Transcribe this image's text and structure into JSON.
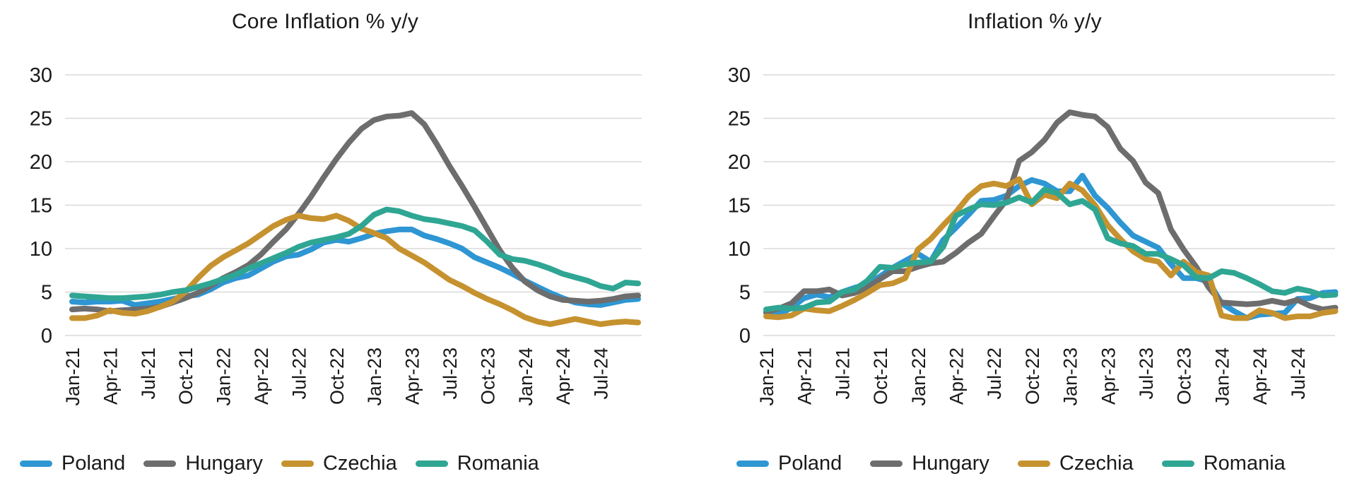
{
  "chart_data": [
    {
      "type": "line",
      "title": "Core Inflation % y/y",
      "frequency": "monthly",
      "x_start": "Jan-21",
      "x_end": "Oct-24",
      "x_tick_labels": [
        "Jan-21",
        "Apr-21",
        "Jul-21",
        "Oct-21",
        "Jan-22",
        "Apr-22",
        "Jul-22",
        "Oct-22",
        "Jan-23",
        "Apr-23",
        "Jul-23",
        "Oct-23",
        "Jan-24",
        "Apr-24",
        "Jul-24"
      ],
      "y_ticks": [
        30,
        25,
        20,
        15,
        10,
        5,
        0
      ],
      "ylim": [
        0,
        30
      ],
      "grid": true,
      "legend_position": "bottom",
      "series": [
        {
          "name": "Poland",
          "color": "#2e96d2",
          "values": [
            3.9,
            3.8,
            3.9,
            3.9,
            4.0,
            3.5,
            3.7,
            3.9,
            4.2,
            4.5,
            4.7,
            5.3,
            6.1,
            6.6,
            6.9,
            7.7,
            8.5,
            9.1,
            9.3,
            9.9,
            10.7,
            11.0,
            10.8,
            11.2,
            11.7,
            12.0,
            12.2,
            12.2,
            11.5,
            11.1,
            10.6,
            10.0,
            9.0,
            8.4,
            7.8,
            7.1,
            6.3,
            5.6,
            4.9,
            4.3,
            3.8,
            3.6,
            3.5,
            3.8,
            4.1,
            4.2
          ]
        },
        {
          "name": "Hungary",
          "color": "#6d6d6d",
          "values": [
            3.0,
            3.1,
            3.0,
            2.8,
            2.9,
            3.0,
            3.1,
            3.3,
            3.8,
            4.3,
            4.9,
            5.7,
            6.6,
            7.3,
            8.1,
            9.3,
            10.8,
            12.2,
            14.0,
            16.0,
            18.2,
            20.3,
            22.2,
            23.8,
            24.8,
            25.2,
            25.3,
            25.6,
            24.3,
            22.0,
            19.5,
            17.2,
            14.8,
            12.3,
            9.8,
            7.8,
            6.2,
            5.2,
            4.5,
            4.1,
            4.0,
            3.9,
            4.0,
            4.2,
            4.5,
            4.6
          ]
        },
        {
          "name": "Czechia",
          "color": "#c6922f",
          "values": [
            2.0,
            2.0,
            2.3,
            2.9,
            2.6,
            2.5,
            2.8,
            3.3,
            3.9,
            5.0,
            6.6,
            8.0,
            9.0,
            9.8,
            10.6,
            11.6,
            12.6,
            13.3,
            13.8,
            13.5,
            13.4,
            13.8,
            13.2,
            12.3,
            11.8,
            11.2,
            10.0,
            9.2,
            8.4,
            7.4,
            6.4,
            5.7,
            4.9,
            4.2,
            3.6,
            2.9,
            2.1,
            1.6,
            1.3,
            1.6,
            1.9,
            1.6,
            1.3,
            1.5,
            1.6,
            1.5
          ]
        },
        {
          "name": "Romania",
          "color": "#2fa693",
          "values": [
            4.6,
            4.5,
            4.4,
            4.3,
            4.3,
            4.4,
            4.5,
            4.7,
            5.0,
            5.2,
            5.6,
            6.0,
            6.5,
            7.0,
            7.7,
            8.3,
            8.9,
            9.5,
            10.2,
            10.7,
            11.0,
            11.3,
            11.7,
            12.6,
            13.9,
            14.5,
            14.3,
            13.8,
            13.4,
            13.2,
            12.9,
            12.6,
            12.1,
            10.8,
            9.3,
            8.8,
            8.6,
            8.2,
            7.7,
            7.1,
            6.7,
            6.3,
            5.7,
            5.4,
            6.1,
            6.0
          ]
        }
      ]
    },
    {
      "type": "line",
      "title": "Inflation % y/y",
      "frequency": "monthly",
      "x_start": "Jan-21",
      "x_end": "Oct-24",
      "x_tick_labels": [
        "Jan-21",
        "Apr-21",
        "Jul-21",
        "Oct-21",
        "Jan-22",
        "Apr-22",
        "Jul-22",
        "Oct-22",
        "Jan-23",
        "Apr-23",
        "Jul-23",
        "Oct-23",
        "Jan-24",
        "Apr-24",
        "Jul-24"
      ],
      "y_ticks": [
        30,
        25,
        20,
        15,
        10,
        5,
        0
      ],
      "ylim": [
        0,
        30
      ],
      "grid": true,
      "legend_position": "bottom",
      "series": [
        {
          "name": "Poland",
          "color": "#2e96d2",
          "values": [
            2.6,
            2.4,
            3.2,
            4.3,
            4.7,
            4.4,
            5.0,
            5.5,
            5.9,
            6.8,
            7.8,
            8.6,
            9.4,
            8.5,
            11.0,
            12.4,
            13.9,
            15.5,
            15.6,
            16.1,
            17.2,
            17.9,
            17.5,
            16.6,
            16.6,
            18.4,
            16.1,
            14.7,
            13.0,
            11.5,
            10.8,
            10.1,
            8.2,
            6.6,
            6.6,
            6.2,
            3.7,
            2.8,
            2.0,
            2.4,
            2.5,
            2.6,
            4.2,
            4.3,
            4.9,
            5.0
          ]
        },
        {
          "name": "Hungary",
          "color": "#6d6d6d",
          "values": [
            2.7,
            3.1,
            3.7,
            5.1,
            5.1,
            5.3,
            4.6,
            4.9,
            5.5,
            6.5,
            7.4,
            7.4,
            7.9,
            8.3,
            8.5,
            9.5,
            10.7,
            11.7,
            13.7,
            15.6,
            20.1,
            21.1,
            22.5,
            24.5,
            25.7,
            25.4,
            25.2,
            24.0,
            21.5,
            20.1,
            17.6,
            16.4,
            12.2,
            9.9,
            7.9,
            5.5,
            3.8,
            3.7,
            3.6,
            3.7,
            4.0,
            3.7,
            4.1,
            3.4,
            3.0,
            3.2
          ]
        },
        {
          "name": "Czechia",
          "color": "#c6922f",
          "values": [
            2.2,
            2.1,
            2.3,
            3.1,
            2.9,
            2.8,
            3.4,
            4.1,
            4.9,
            5.8,
            6.0,
            6.6,
            9.9,
            11.1,
            12.7,
            14.2,
            16.0,
            17.2,
            17.5,
            17.2,
            18.0,
            15.1,
            16.2,
            15.8,
            17.5,
            16.7,
            15.0,
            12.7,
            11.1,
            9.7,
            8.8,
            8.5,
            6.9,
            8.5,
            7.3,
            6.9,
            2.3,
            2.0,
            2.0,
            2.9,
            2.6,
            2.0,
            2.2,
            2.2,
            2.6,
            2.8
          ]
        },
        {
          "name": "Romania",
          "color": "#2fa693",
          "values": [
            3.0,
            3.2,
            3.1,
            3.2,
            3.8,
            3.9,
            5.0,
            5.3,
            6.3,
            7.9,
            7.8,
            8.2,
            8.4,
            8.5,
            10.2,
            13.8,
            14.5,
            15.1,
            15.0,
            15.3,
            15.9,
            15.3,
            16.8,
            16.4,
            15.1,
            15.5,
            14.5,
            11.2,
            10.6,
            10.3,
            9.4,
            9.4,
            8.8,
            8.1,
            6.7,
            6.6,
            7.4,
            7.2,
            6.6,
            5.9,
            5.1,
            4.9,
            5.4,
            5.1,
            4.6,
            4.7
          ]
        }
      ]
    }
  ]
}
